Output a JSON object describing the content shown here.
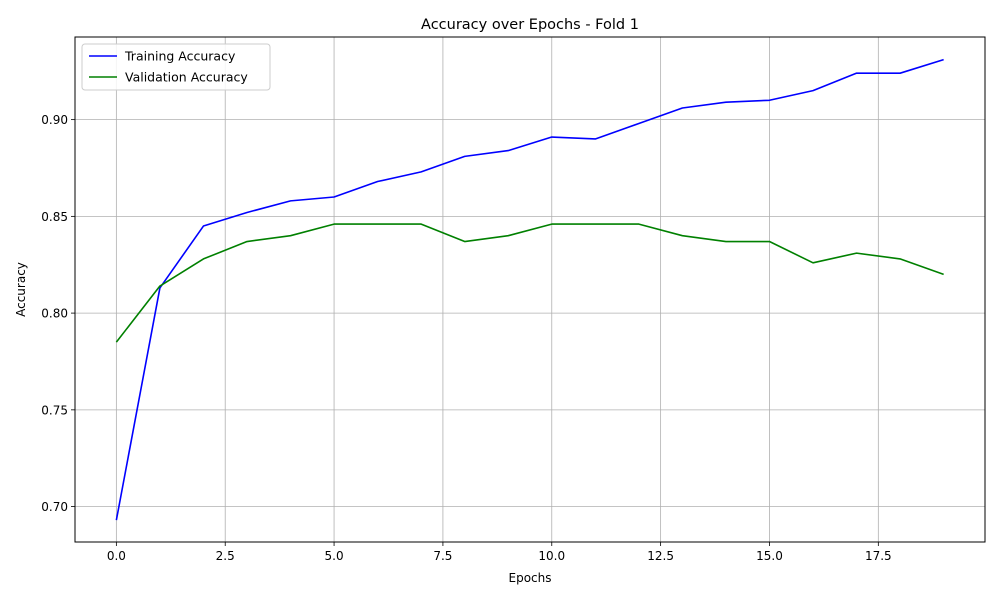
{
  "chart_data": {
    "type": "line",
    "title": "Accuracy over Epochs - Fold 1",
    "xlabel": "Epochs",
    "ylabel": "Accuracy",
    "xlim": [
      -0.95,
      19.95
    ],
    "ylim": [
      0.6817,
      0.9427
    ],
    "grid": true,
    "legend_position": "upper-left",
    "x": [
      0,
      1,
      2,
      3,
      4,
      5,
      6,
      7,
      8,
      9,
      10,
      11,
      12,
      13,
      14,
      15,
      16,
      17,
      18,
      19
    ],
    "xticks": [
      0.0,
      2.5,
      5.0,
      7.5,
      10.0,
      12.5,
      15.0,
      17.5
    ],
    "xtick_labels": [
      "0.0",
      "2.5",
      "5.0",
      "7.5",
      "10.0",
      "12.5",
      "15.0",
      "17.5"
    ],
    "yticks": [
      0.7,
      0.75,
      0.8,
      0.85,
      0.9
    ],
    "ytick_labels": [
      "0.70",
      "0.75",
      "0.80",
      "0.85",
      "0.90"
    ],
    "series": [
      {
        "name": "Training Accuracy",
        "color": "#0000ff",
        "values": [
          0.693,
          0.813,
          0.845,
          0.852,
          0.858,
          0.86,
          0.868,
          0.873,
          0.881,
          0.884,
          0.891,
          0.89,
          0.898,
          0.906,
          0.909,
          0.91,
          0.915,
          0.924,
          0.924,
          0.931
        ]
      },
      {
        "name": "Validation Accuracy",
        "color": "#008000",
        "values": [
          0.785,
          0.814,
          0.828,
          0.837,
          0.84,
          0.846,
          0.846,
          0.846,
          0.837,
          0.84,
          0.846,
          0.846,
          0.846,
          0.84,
          0.837,
          0.837,
          0.826,
          0.831,
          0.828,
          0.82
        ]
      }
    ]
  }
}
